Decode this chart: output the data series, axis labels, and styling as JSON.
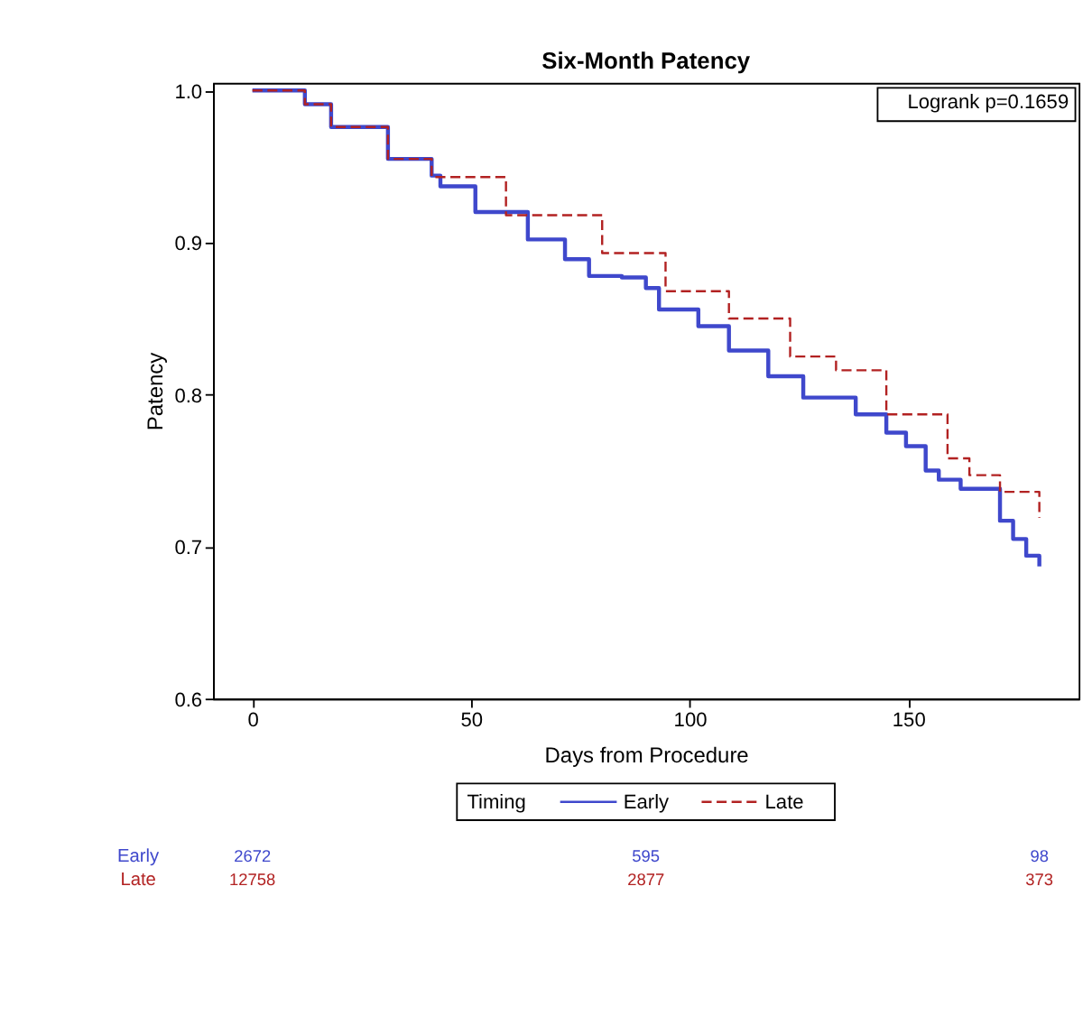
{
  "chart_data": {
    "type": "step",
    "title": "Six-Month Patency",
    "xlabel": "Days from Procedure",
    "ylabel": "Patency",
    "legend_title": "Timing",
    "legend": "bottom",
    "grid": false,
    "xlim": [
      -9,
      189
    ],
    "xticks": [
      0,
      50,
      100,
      150
    ],
    "ylim": [
      0.6,
      1.005
    ],
    "yticks": [
      0.6,
      0.7,
      0.8,
      0.9,
      {
        "value": 1.0,
        "label": "1.0"
      }
    ],
    "series": [
      {
        "name": "Early",
        "color": "#3f48cc",
        "line_style": "solid",
        "x": [
          0,
          12,
          18,
          31,
          41,
          43,
          51,
          63,
          71.5,
          77,
          84.5,
          90,
          93,
          102,
          109,
          118,
          126,
          138,
          145,
          149.5,
          152,
          154,
          157,
          162,
          168,
          171,
          174,
          177,
          180
        ],
        "values": [
          1.0,
          0.991,
          0.976,
          0.955,
          0.944,
          0.937,
          0.92,
          0.902,
          0.889,
          0.878,
          0.877,
          0.87,
          0.856,
          0.845,
          0.829,
          0.812,
          0.798,
          0.787,
          0.775,
          0.766,
          0.766,
          0.75,
          0.744,
          0.738,
          0.738,
          0.717,
          0.705,
          0.694,
          0.687
        ]
      },
      {
        "name": "Late",
        "color": "#b22222",
        "line_style": "dashed",
        "x": [
          0,
          12,
          18,
          31,
          41,
          58,
          80,
          94.5,
          109,
          123,
          133.5,
          145,
          159,
          164,
          171,
          180
        ],
        "values": [
          1.0,
          0.991,
          0.976,
          0.955,
          0.943,
          0.918,
          0.893,
          0.868,
          0.85,
          0.825,
          0.816,
          0.787,
          0.758,
          0.747,
          0.736,
          0.719
        ]
      }
    ],
    "annotations": [
      "Logrank p=0.1659",
      "2672",
      "595",
      "98",
      "12758",
      "2877",
      "373"
    ]
  }
}
